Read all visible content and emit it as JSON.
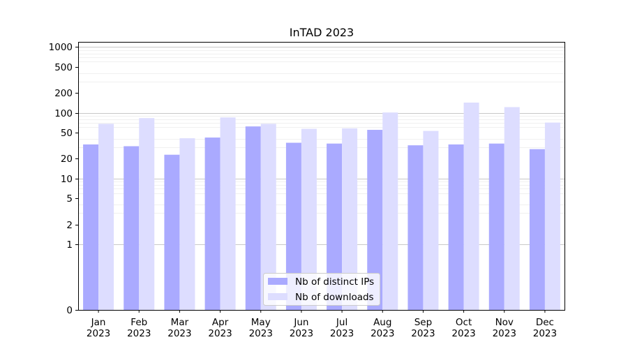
{
  "chart_data": {
    "type": "bar",
    "title": "InTAD 2023",
    "xlabel": "",
    "ylabel": "",
    "y_scale": "symlog",
    "ylim": [
      0,
      1200
    ],
    "y_ticks": [
      0,
      1,
      2,
      5,
      10,
      20,
      50,
      100,
      200,
      500,
      1000
    ],
    "y_tick_labels": [
      "0",
      "1",
      "2",
      "5",
      "10",
      "20",
      "50",
      "100",
      "200",
      "500",
      "1000"
    ],
    "categories": [
      "Jan\n2023",
      "Feb\n2023",
      "Mar\n2023",
      "Apr\n2023",
      "May\n2023",
      "Jun\n2023",
      "Jul\n2023",
      "Aug\n2023",
      "Sep\n2023",
      "Oct\n2023",
      "Nov\n2023",
      "Dec\n2023"
    ],
    "series": [
      {
        "name": "Nb of distinct IPs",
        "color": "#aaaaff",
        "values": [
          33,
          31,
          23,
          42,
          62,
          35,
          34,
          55,
          32,
          33,
          34,
          28
        ]
      },
      {
        "name": "Nb of downloads",
        "color": "#ddddff",
        "values": [
          68,
          83,
          41,
          85,
          68,
          57,
          58,
          101,
          53,
          143,
          122,
          71
        ]
      }
    ],
    "grid": true,
    "legend_position": "bottom-center"
  }
}
